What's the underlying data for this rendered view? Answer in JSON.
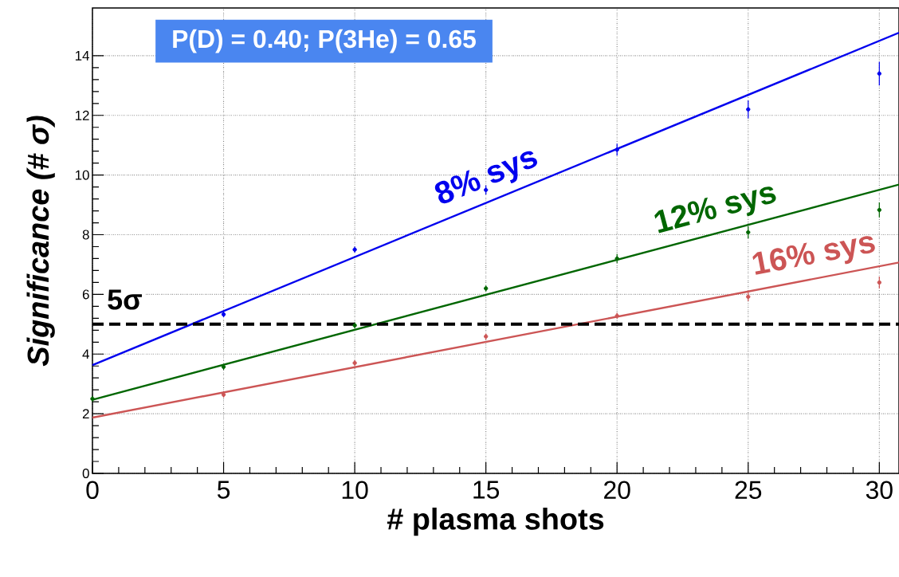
{
  "chart_data": {
    "type": "scatter",
    "xlabel": "# plasma shots",
    "ylabel": "Significance (# *σ*)",
    "xlim": [
      0,
      30.75
    ],
    "ylim": [
      0,
      15.6
    ],
    "xticks": [
      0,
      5,
      10,
      15,
      20,
      25,
      30
    ],
    "yticks": [
      0,
      2,
      4,
      6,
      8,
      10,
      12,
      14
    ],
    "grid": true,
    "annotations": [
      "P(D) = 0.40; P(3He) = 0.65"
    ],
    "ref_lines": [
      {
        "axis": "y",
        "value": 5,
        "label": "5σ",
        "color": "#000000",
        "line_style": "dashed"
      }
    ],
    "series": [
      {
        "type": "line",
        "name": "8% sys",
        "color": "#0000ee",
        "marker": "none",
        "line_style": "solid",
        "x": [
          0,
          30.75
        ],
        "values": [
          3.63,
          14.77
        ]
      },
      {
        "color": "#0000ee",
        "marker": "circle",
        "x": [
          5,
          10,
          15,
          20,
          25,
          30
        ],
        "values": [
          5.33,
          7.5,
          9.5,
          10.85,
          12.2,
          13.4
        ],
        "errors": [
          0.1,
          0.1,
          0.15,
          0.2,
          0.3,
          0.4
        ]
      },
      {
        "type": "line",
        "name": "12% sys",
        "color": "#006600",
        "marker": "none",
        "line_style": "solid",
        "x": [
          0,
          30.75
        ],
        "values": [
          2.47,
          9.68
        ]
      },
      {
        "color": "#006600",
        "marker": "circle",
        "x": [
          0,
          5,
          10,
          15,
          20,
          25,
          30
        ],
        "values": [
          2.5,
          3.57,
          4.96,
          6.2,
          7.2,
          8.08,
          8.83
        ],
        "errors": [
          0.1,
          0.1,
          0.1,
          0.1,
          0.15,
          0.2,
          0.25
        ]
      },
      {
        "type": "line",
        "name": "16% sys",
        "color": "#cc5555",
        "marker": "none",
        "line_style": "solid",
        "x": [
          0,
          30.75
        ],
        "values": [
          1.87,
          7.07
        ]
      },
      {
        "color": "#cc5555",
        "marker": "circle",
        "x": [
          5,
          10,
          15,
          20,
          25,
          30
        ],
        "values": [
          2.64,
          3.7,
          4.59,
          5.28,
          5.92,
          6.4
        ],
        "errors": [
          0.1,
          0.1,
          0.1,
          0.1,
          0.15,
          0.2
        ]
      }
    ]
  }
}
